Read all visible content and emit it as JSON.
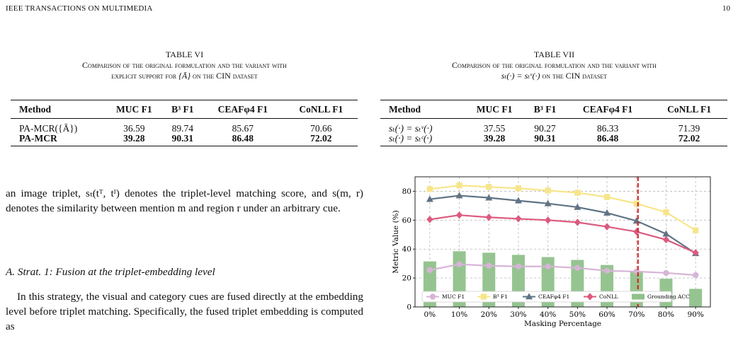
{
  "header": {
    "journal": "IEEE TRANSACTIONS ON MULTIMEDIA",
    "page": "10"
  },
  "table6": {
    "label": "TABLE VI",
    "caption_line1": "Comparison of the original formulation and the variant with",
    "caption_line2a": "explicit support for ",
    "caption_math": "{Ā}",
    "caption_line2b": " on the CIN dataset",
    "headers": [
      "Method",
      "MUC F1",
      "B³ F1",
      "CEAFφ4 F1",
      "CoNLL F1"
    ],
    "rows": [
      [
        "PA-MCR({Ā})",
        "36.59",
        "89.74",
        "85.67",
        "70.66"
      ],
      [
        "PA-MCR",
        "39.28",
        "90.31",
        "86.48",
        "72.02"
      ]
    ]
  },
  "table7": {
    "label": "TABLE VII",
    "caption_line1": "Comparison of the original formulation and the variant with",
    "caption_math": "sₜ(·) = sₜᵛ(·)",
    "caption_line2b": " on the CIN dataset",
    "headers": [
      "Method",
      "MUC F1",
      "B³ F1",
      "CEAFφ4 F1",
      "CoNLL F1"
    ],
    "rows": [
      [
        "sₜ(·) = sₜᵛ(·)",
        "37.55",
        "90.27",
        "86.33",
        "71.39"
      ],
      [
        "sₜ(·) = sₜᶜ(·)",
        "39.28",
        "90.31",
        "86.48",
        "72.02"
      ]
    ]
  },
  "body": {
    "para1": "an image triplet, sₜ(tᵀ, tᴵ) denotes the triplet-level matching score, and s(m, r) denotes the similarity between mention m and region r under an arbitrary cue.",
    "subsection": "A. Strat. 1: Fusion at the triplet-embedding level",
    "para2": "In this strategy, the visual and category cues are fused directly at the embedding level before triplet matching. Specifically, the fused triplet embedding is computed as"
  },
  "chart_data": {
    "type": "line",
    "xlabel": "Masking Percentage",
    "ylabel": "Metric Value (%)",
    "categories": [
      "0%",
      "10%",
      "20%",
      "30%",
      "40%",
      "50%",
      "60%",
      "70%",
      "80%",
      "90%"
    ],
    "ylim": [
      0,
      90
    ],
    "yticks": [
      "0",
      "20",
      "40",
      "60",
      "80"
    ],
    "grid": true,
    "legend_position": "bottom",
    "vline_at_category": "70%",
    "series": [
      {
        "name": "MUC F1",
        "kind": "line",
        "color": "#d6b4d6",
        "marker": "circle",
        "values": [
          25.5,
          29.5,
          28.5,
          28.0,
          28.0,
          27.0,
          25.0,
          24.5,
          23.5,
          22.0
        ]
      },
      {
        "name": "B³ F1",
        "kind": "line",
        "color": "#f7e58a",
        "marker": "square",
        "values": [
          81.5,
          84.0,
          83.0,
          82.0,
          80.5,
          79.0,
          76.0,
          71.5,
          65.5,
          53.0
        ]
      },
      {
        "name": "CEAFφ4 F1",
        "kind": "line",
        "color": "#5f7384",
        "marker": "triangle",
        "values": [
          74.5,
          77.0,
          75.5,
          73.5,
          71.5,
          69.0,
          65.0,
          59.5,
          50.5,
          37.0
        ]
      },
      {
        "name": "CoNLL",
        "kind": "line",
        "color": "#dc5a7e",
        "marker": "diamond",
        "values": [
          60.5,
          63.5,
          62.0,
          61.0,
          60.0,
          58.5,
          55.5,
          52.0,
          46.5,
          37.5
        ]
      },
      {
        "name": "Grounding ACC",
        "kind": "bar",
        "color": "#8fc18a",
        "values": [
          31.5,
          38.5,
          37.5,
          36.0,
          34.5,
          32.5,
          29.0,
          24.5,
          19.5,
          12.5
        ]
      }
    ]
  }
}
